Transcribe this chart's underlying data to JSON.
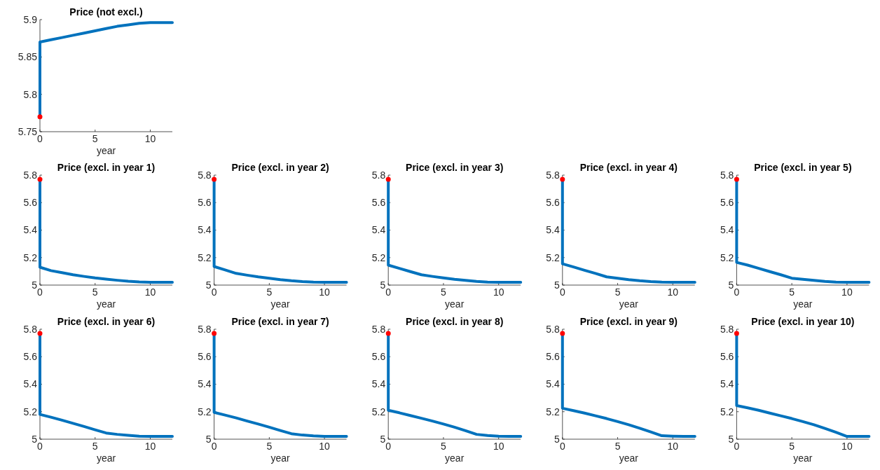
{
  "chart_data": [
    {
      "type": "line",
      "title": "Price (not excl.)",
      "xlabel": "year",
      "xlim": [
        0,
        12
      ],
      "xticks": [
        0,
        5,
        10
      ],
      "ylim": [
        5.75,
        5.9
      ],
      "yticks": [
        5.75,
        5.8,
        5.85,
        5.9
      ],
      "grid": false,
      "series": [
        {
          "color": "#0072bd",
          "x": [
            0,
            0,
            1,
            2,
            3,
            4,
            5,
            6,
            7,
            8,
            9,
            10,
            11,
            12
          ],
          "values": [
            5.77,
            5.87,
            5.873,
            5.876,
            5.879,
            5.882,
            5.885,
            5.888,
            5.891,
            5.893,
            5.895,
            5.896,
            5.896,
            5.896
          ]
        },
        {
          "type": "scatter",
          "marker": "circle",
          "color": "#ff0000",
          "x": [
            0
          ],
          "values": [
            5.77
          ]
        }
      ]
    },
    {
      "type": "line",
      "title": "Price (excl. in year 1)",
      "xlabel": "year",
      "xlim": [
        0,
        12
      ],
      "xticks": [
        0,
        5,
        10
      ],
      "ylim": [
        5,
        5.8
      ],
      "yticks": [
        5,
        5.2,
        5.4,
        5.6,
        5.8
      ],
      "grid": false,
      "series": [
        {
          "color": "#0072bd",
          "x": [
            0,
            0,
            1,
            2,
            3,
            4,
            5,
            6,
            7,
            8,
            9,
            10,
            11,
            12
          ],
          "values": [
            5.77,
            5.13,
            5.105,
            5.09,
            5.075,
            5.063,
            5.052,
            5.043,
            5.035,
            5.028,
            5.023,
            5.02,
            5.02,
            5.02
          ]
        },
        {
          "type": "scatter",
          "marker": "circle",
          "color": "#ff0000",
          "x": [
            0
          ],
          "values": [
            5.77
          ]
        }
      ]
    },
    {
      "type": "line",
      "title": "Price (excl. in year 2)",
      "xlabel": "year",
      "xlim": [
        0,
        12
      ],
      "xticks": [
        0,
        5,
        10
      ],
      "ylim": [
        5,
        5.8
      ],
      "yticks": [
        5,
        5.2,
        5.4,
        5.6,
        5.8
      ],
      "grid": false,
      "series": [
        {
          "color": "#0072bd",
          "x": [
            0,
            0,
            1,
            2,
            3,
            4,
            5,
            6,
            7,
            8,
            9,
            10,
            11,
            12
          ],
          "values": [
            5.77,
            5.135,
            5.11,
            5.085,
            5.072,
            5.06,
            5.05,
            5.04,
            5.032,
            5.026,
            5.022,
            5.02,
            5.02,
            5.02
          ]
        },
        {
          "type": "scatter",
          "marker": "circle",
          "color": "#ff0000",
          "x": [
            0
          ],
          "values": [
            5.77
          ]
        }
      ]
    },
    {
      "type": "line",
      "title": "Price (excl. in year 3)",
      "xlabel": "year",
      "xlim": [
        0,
        12
      ],
      "xticks": [
        0,
        5,
        10
      ],
      "ylim": [
        5,
        5.8
      ],
      "yticks": [
        5,
        5.2,
        5.4,
        5.6,
        5.8
      ],
      "grid": false,
      "series": [
        {
          "color": "#0072bd",
          "x": [
            0,
            0,
            1,
            2,
            3,
            4,
            5,
            6,
            7,
            8,
            9,
            10,
            11,
            12
          ],
          "values": [
            5.77,
            5.145,
            5.122,
            5.098,
            5.075,
            5.063,
            5.052,
            5.042,
            5.034,
            5.027,
            5.022,
            5.02,
            5.02,
            5.02
          ]
        },
        {
          "type": "scatter",
          "marker": "circle",
          "color": "#ff0000",
          "x": [
            0
          ],
          "values": [
            5.77
          ]
        }
      ]
    },
    {
      "type": "line",
      "title": "Price (excl. in year 4)",
      "xlabel": "year",
      "xlim": [
        0,
        12
      ],
      "xticks": [
        0,
        5,
        10
      ],
      "ylim": [
        5,
        5.8
      ],
      "yticks": [
        5,
        5.2,
        5.4,
        5.6,
        5.8
      ],
      "grid": false,
      "series": [
        {
          "color": "#0072bd",
          "x": [
            0,
            0,
            1,
            2,
            3,
            4,
            5,
            6,
            7,
            8,
            9,
            10,
            11,
            12
          ],
          "values": [
            5.77,
            5.155,
            5.132,
            5.108,
            5.085,
            5.06,
            5.05,
            5.04,
            5.032,
            5.026,
            5.022,
            5.02,
            5.02,
            5.02
          ]
        },
        {
          "type": "scatter",
          "marker": "circle",
          "color": "#ff0000",
          "x": [
            0
          ],
          "values": [
            5.77
          ]
        }
      ]
    },
    {
      "type": "line",
      "title": "Price (excl. in year 5)",
      "xlabel": "year",
      "xlim": [
        0,
        12
      ],
      "xticks": [
        0,
        5,
        10
      ],
      "ylim": [
        5,
        5.8
      ],
      "yticks": [
        5,
        5.2,
        5.4,
        5.6,
        5.8
      ],
      "grid": false,
      "series": [
        {
          "color": "#0072bd",
          "x": [
            0,
            0,
            1,
            2,
            3,
            4,
            5,
            6,
            7,
            8,
            9,
            10,
            11,
            12
          ],
          "values": [
            5.77,
            5.165,
            5.145,
            5.122,
            5.098,
            5.075,
            5.05,
            5.042,
            5.034,
            5.027,
            5.022,
            5.02,
            5.02,
            5.02
          ]
        },
        {
          "type": "scatter",
          "marker": "circle",
          "color": "#ff0000",
          "x": [
            0
          ],
          "values": [
            5.77
          ]
        }
      ]
    },
    {
      "type": "line",
      "title": "Price (excl. in year 6)",
      "xlabel": "year",
      "xlim": [
        0,
        12
      ],
      "xticks": [
        0,
        5,
        10
      ],
      "ylim": [
        5,
        5.8
      ],
      "yticks": [
        5,
        5.2,
        5.4,
        5.6,
        5.8
      ],
      "grid": false,
      "series": [
        {
          "color": "#0072bd",
          "x": [
            0,
            0,
            1,
            2,
            3,
            4,
            5,
            6,
            7,
            8,
            9,
            10,
            11,
            12
          ],
          "values": [
            5.77,
            5.18,
            5.16,
            5.138,
            5.115,
            5.092,
            5.068,
            5.045,
            5.035,
            5.028,
            5.022,
            5.02,
            5.02,
            5.02
          ]
        },
        {
          "type": "scatter",
          "marker": "circle",
          "color": "#ff0000",
          "x": [
            0
          ],
          "values": [
            5.77
          ]
        }
      ]
    },
    {
      "type": "line",
      "title": "Price (excl. in year 7)",
      "xlabel": "year",
      "xlim": [
        0,
        12
      ],
      "xticks": [
        0,
        5,
        10
      ],
      "ylim": [
        5,
        5.8
      ],
      "yticks": [
        5,
        5.2,
        5.4,
        5.6,
        5.8
      ],
      "grid": false,
      "series": [
        {
          "color": "#0072bd",
          "x": [
            0,
            0,
            1,
            2,
            3,
            4,
            5,
            6,
            7,
            8,
            9,
            10,
            11,
            12
          ],
          "values": [
            5.77,
            5.195,
            5.175,
            5.155,
            5.132,
            5.11,
            5.087,
            5.063,
            5.04,
            5.03,
            5.024,
            5.02,
            5.02,
            5.02
          ]
        },
        {
          "type": "scatter",
          "marker": "circle",
          "color": "#ff0000",
          "x": [
            0
          ],
          "values": [
            5.77
          ]
        }
      ]
    },
    {
      "type": "line",
      "title": "Price (excl. in year 8)",
      "xlabel": "year",
      "xlim": [
        0,
        12
      ],
      "xticks": [
        0,
        5,
        10
      ],
      "ylim": [
        5,
        5.8
      ],
      "yticks": [
        5,
        5.2,
        5.4,
        5.6,
        5.8
      ],
      "grid": false,
      "series": [
        {
          "color": "#0072bd",
          "x": [
            0,
            0,
            1,
            2,
            3,
            4,
            5,
            6,
            7,
            8,
            9,
            10,
            11,
            12
          ],
          "values": [
            5.77,
            5.21,
            5.192,
            5.172,
            5.152,
            5.132,
            5.11,
            5.087,
            5.062,
            5.035,
            5.027,
            5.022,
            5.02,
            5.02
          ]
        },
        {
          "type": "scatter",
          "marker": "circle",
          "color": "#ff0000",
          "x": [
            0
          ],
          "values": [
            5.77
          ]
        }
      ]
    },
    {
      "type": "line",
      "title": "Price (excl. in year 9)",
      "xlabel": "year",
      "xlim": [
        0,
        12
      ],
      "xticks": [
        0,
        5,
        10
      ],
      "ylim": [
        5,
        5.8
      ],
      "yticks": [
        5,
        5.2,
        5.4,
        5.6,
        5.8
      ],
      "grid": false,
      "series": [
        {
          "color": "#0072bd",
          "x": [
            0,
            0,
            1,
            2,
            3,
            4,
            5,
            6,
            7,
            8,
            9,
            10,
            11,
            12
          ],
          "values": [
            5.77,
            5.225,
            5.208,
            5.19,
            5.17,
            5.15,
            5.128,
            5.105,
            5.08,
            5.053,
            5.025,
            5.022,
            5.02,
            5.02
          ]
        },
        {
          "type": "scatter",
          "marker": "circle",
          "color": "#ff0000",
          "x": [
            0
          ],
          "values": [
            5.77
          ]
        }
      ]
    },
    {
      "type": "line",
      "title": "Price (excl. in year 10)",
      "xlabel": "year",
      "xlim": [
        0,
        12
      ],
      "xticks": [
        0,
        5,
        10
      ],
      "ylim": [
        5,
        5.8
      ],
      "yticks": [
        5,
        5.2,
        5.4,
        5.6,
        5.8
      ],
      "grid": false,
      "series": [
        {
          "color": "#0072bd",
          "x": [
            0,
            0,
            1,
            2,
            3,
            4,
            5,
            6,
            7,
            8,
            9,
            10,
            11,
            12
          ],
          "values": [
            5.77,
            5.245,
            5.228,
            5.21,
            5.19,
            5.17,
            5.15,
            5.128,
            5.105,
            5.078,
            5.05,
            5.02,
            5.02,
            5.02
          ]
        },
        {
          "type": "scatter",
          "marker": "circle",
          "color": "#ff0000",
          "x": [
            0
          ],
          "values": [
            5.77
          ]
        }
      ]
    }
  ]
}
